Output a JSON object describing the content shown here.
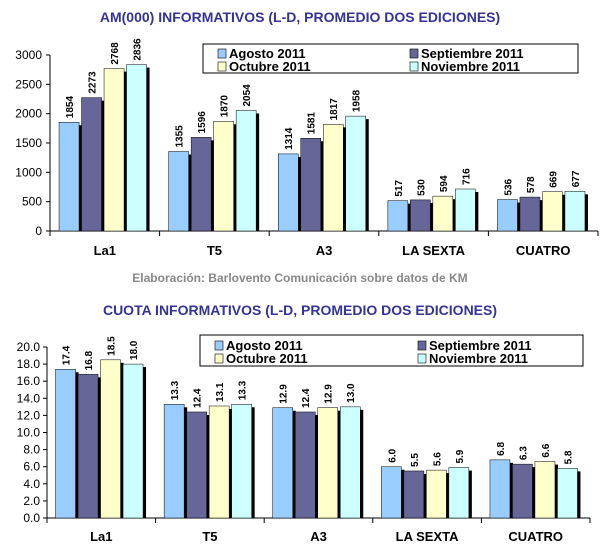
{
  "footer": "Elaboración: Barlovento Comunicación sobre datos de KM",
  "colors": {
    "Agosto 2011": "#99CCFF",
    "Septiembre 2011": "#666699",
    "Octubre 2011": "#FFFFCC",
    "Noviembre 2011": "#CCFFFF",
    "title": "#333399"
  },
  "chart_data": [
    {
      "type": "bar",
      "title": "AM(000) INFORMATIVOS (L-D, PROMEDIO DOS EDICIONES)",
      "categories": [
        "La1",
        "T5",
        "A3",
        "LA SEXTA",
        "CUATRO"
      ],
      "ylim": [
        0,
        3000
      ],
      "yticks": [
        "0",
        "500",
        "1000",
        "1500",
        "2000",
        "2500",
        "3000"
      ],
      "legend": "top-right",
      "series": [
        {
          "name": "Agosto 2011",
          "values": [
            1854,
            1355,
            1314,
            517,
            536
          ],
          "labels": [
            "1854",
            "1355",
            "1314",
            "517",
            "536"
          ]
        },
        {
          "name": "Septiembre 2011",
          "values": [
            2273,
            1596,
            1581,
            530,
            578
          ],
          "labels": [
            "2273",
            "1596",
            "1581",
            "530",
            "578"
          ]
        },
        {
          "name": "Octubre 2011",
          "values": [
            2768,
            1870,
            1817,
            594,
            669
          ],
          "labels": [
            "2768",
            "1870",
            "1817",
            "594",
            "669"
          ]
        },
        {
          "name": "Noviembre 2011",
          "values": [
            2836,
            2054,
            1958,
            716,
            677
          ],
          "labels": [
            "2836",
            "2054",
            "1958",
            "716",
            "677"
          ]
        }
      ]
    },
    {
      "type": "bar",
      "title": "CUOTA INFORMATIVOS (L-D, PROMEDIO DOS EDICIONES)",
      "categories": [
        "La1",
        "T5",
        "A3",
        "LA SEXTA",
        "CUATRO"
      ],
      "ylim": [
        0,
        20
      ],
      "yticks": [
        "0.0",
        "2.0",
        "4.0",
        "6.0",
        "8.0",
        "10.0",
        "12.0",
        "14.0",
        "16.0",
        "18.0",
        "20.0"
      ],
      "legend": "top-right",
      "series": [
        {
          "name": "Agosto 2011",
          "values": [
            17.4,
            13.3,
            12.9,
            6.0,
            6.8
          ],
          "labels": [
            "17.4",
            "13.3",
            "12.9",
            "6.0",
            "6.8"
          ]
        },
        {
          "name": "Septiembre 2011",
          "values": [
            16.8,
            12.4,
            12.4,
            5.5,
            6.3
          ],
          "labels": [
            "16.8",
            "12.4",
            "12.4",
            "5.5",
            "6.3"
          ]
        },
        {
          "name": "Octubre 2011",
          "values": [
            18.5,
            13.1,
            12.9,
            5.6,
            6.6
          ],
          "labels": [
            "18.5",
            "13.1",
            "12.9",
            "5.6",
            "6.6"
          ]
        },
        {
          "name": "Noviembre 2011",
          "values": [
            18.0,
            13.3,
            13.0,
            5.9,
            5.8
          ],
          "labels": [
            "18.0",
            "13.3",
            "13.0",
            "5.9",
            "5.8"
          ]
        }
      ]
    }
  ]
}
